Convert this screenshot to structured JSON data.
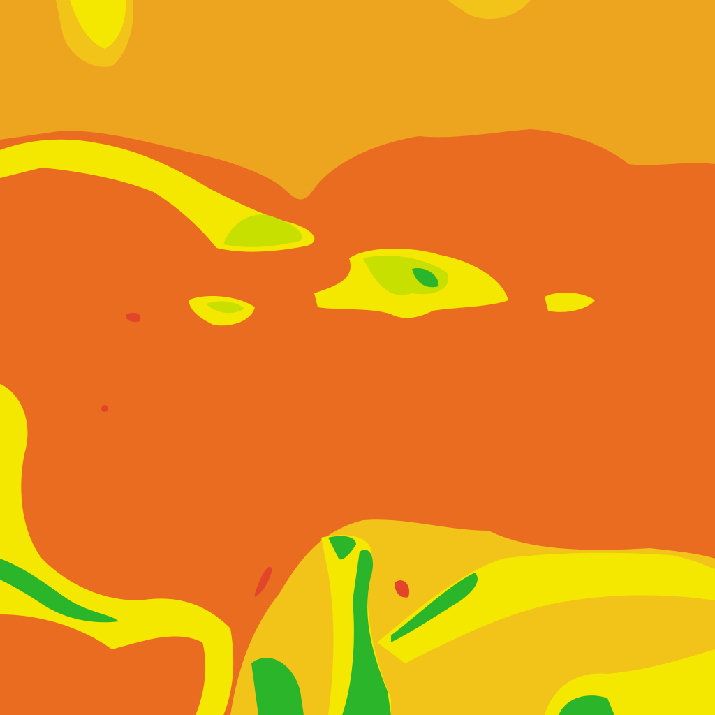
{
  "palette": {
    "hot": "#e96c21",
    "warm": "#eda520",
    "mild": "#f2c419",
    "cool": "#f5e800",
    "lime": "#c8e000",
    "green": "#2bb52b",
    "deep_green": "#0f9a3c",
    "red": "#e2452a"
  }
}
